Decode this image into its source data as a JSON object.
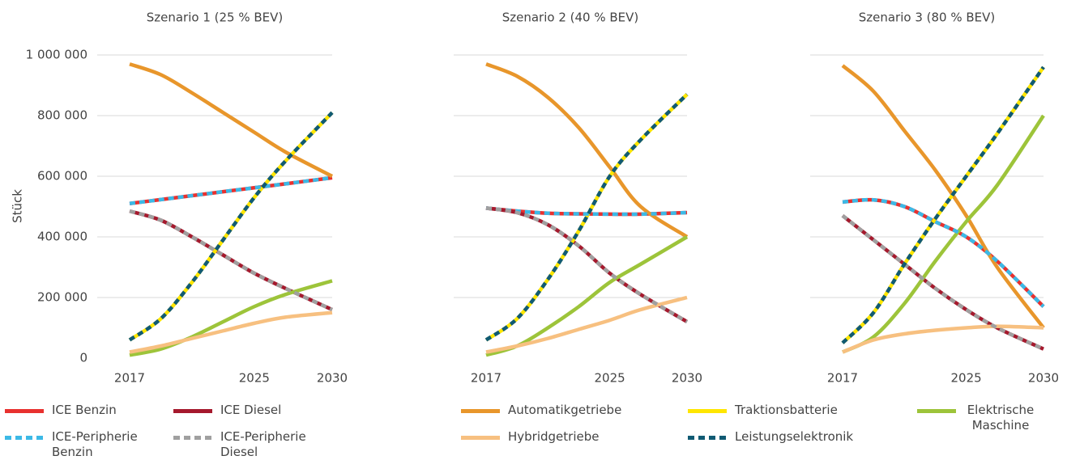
{
  "chart_data": [
    {
      "type": "line",
      "title": "Szenario 1 (25 % BEV)",
      "ylabel": "Stück",
      "x": [
        2017,
        2019,
        2021,
        2023,
        2025,
        2027,
        2030
      ],
      "xlim": [
        2017,
        2030
      ],
      "xticks": [
        2017,
        2025,
        2030
      ],
      "ylim": [
        0,
        1000000
      ],
      "yticks": [
        0,
        {
          "value": 200000,
          "label": "200 000"
        },
        {
          "value": 400000,
          "label": "400 000"
        },
        {
          "value": 600000,
          "label": "600 000"
        },
        {
          "value": 800000,
          "label": "800 000"
        },
        {
          "value": 1000000,
          "label": "1 000 000"
        }
      ],
      "grid": true,
      "series": [
        {
          "name": "ICE Benzin",
          "color": "#e8312f",
          "values": [
            510000,
            523000,
            536000,
            549000,
            562000,
            575000,
            595000
          ]
        },
        {
          "name": "ICE Diesel",
          "color": "#a5192d",
          "values": [
            485000,
            455000,
            400000,
            340000,
            280000,
            230000,
            160000
          ]
        },
        {
          "name": "Automatikgetriebe",
          "color": "#e8962b",
          "values": [
            970000,
            935000,
            875000,
            810000,
            745000,
            680000,
            600000
          ]
        },
        {
          "name": "Traktionsbatterie",
          "color": "#ffe600",
          "values": [
            60000,
            130000,
            250000,
            390000,
            530000,
            650000,
            810000
          ]
        },
        {
          "name": "Elektrische Maschine",
          "color": "#9dc43a",
          "values": [
            10000,
            30000,
            70000,
            120000,
            170000,
            210000,
            255000
          ]
        },
        {
          "name": "ICE-Peripherie Benzin",
          "color": "#3cb9e6",
          "dashed": true,
          "values": [
            510000,
            523000,
            536000,
            549000,
            562000,
            575000,
            595000
          ]
        },
        {
          "name": "ICE-Peripherie Diesel",
          "color": "#a0a0a0",
          "dashed": true,
          "values": [
            485000,
            455000,
            400000,
            340000,
            280000,
            230000,
            160000
          ]
        },
        {
          "name": "Hybridgetriebe",
          "color": "#f7c080",
          "values": [
            20000,
            40000,
            65000,
            90000,
            115000,
            135000,
            150000
          ]
        },
        {
          "name": "Leistungselektronik",
          "color": "#105a73",
          "dashed": true,
          "values": [
            60000,
            130000,
            250000,
            390000,
            530000,
            650000,
            810000
          ]
        }
      ]
    },
    {
      "type": "line",
      "title": "Szenario 2 (40 % BEV)",
      "x": [
        2017,
        2019,
        2021,
        2023,
        2025,
        2027,
        2030
      ],
      "xlim": [
        2017,
        2030
      ],
      "xticks": [
        2017,
        2025,
        2030
      ],
      "ylim": [
        0,
        1000000
      ],
      "grid": true,
      "series": [
        {
          "color": "#e8312f",
          "values": [
            495000,
            485000,
            478000,
            476000,
            475000,
            475000,
            480000
          ]
        },
        {
          "color": "#a5192d",
          "values": [
            495000,
            480000,
            440000,
            370000,
            280000,
            210000,
            120000
          ]
        },
        {
          "color": "#e8962b",
          "values": [
            970000,
            930000,
            860000,
            760000,
            630000,
            500000,
            400000
          ]
        },
        {
          "color": "#ffe600",
          "values": [
            60000,
            130000,
            260000,
            420000,
            600000,
            720000,
            870000
          ]
        },
        {
          "color": "#9dc43a",
          "values": [
            10000,
            40000,
            100000,
            170000,
            250000,
            310000,
            400000
          ]
        },
        {
          "color": "#3cb9e6",
          "dashed": true,
          "values": [
            495000,
            485000,
            478000,
            476000,
            475000,
            475000,
            480000
          ]
        },
        {
          "color": "#a0a0a0",
          "dashed": true,
          "values": [
            495000,
            480000,
            440000,
            370000,
            280000,
            210000,
            120000
          ]
        },
        {
          "color": "#f7c080",
          "values": [
            20000,
            40000,
            65000,
            95000,
            125000,
            160000,
            200000
          ]
        },
        {
          "color": "#105a73",
          "dashed": true,
          "values": [
            60000,
            130000,
            260000,
            420000,
            600000,
            720000,
            870000
          ]
        }
      ]
    },
    {
      "type": "line",
      "title": "Szenario 3 (80 % BEV)",
      "x": [
        2017,
        2019,
        2021,
        2023,
        2025,
        2027,
        2030
      ],
      "xlim": [
        2017,
        2030
      ],
      "xticks": [
        2017,
        2025,
        2030
      ],
      "ylim": [
        0,
        1000000
      ],
      "grid": true,
      "series": [
        {
          "color": "#e8312f",
          "values": [
            515000,
            522000,
            500000,
            450000,
            400000,
            320000,
            170000
          ]
        },
        {
          "color": "#a5192d",
          "values": [
            470000,
            390000,
            310000,
            230000,
            160000,
            100000,
            30000
          ]
        },
        {
          "color": "#e8962b",
          "values": [
            965000,
            880000,
            750000,
            620000,
            470000,
            300000,
            100000
          ]
        },
        {
          "color": "#ffe600",
          "values": [
            50000,
            150000,
            310000,
            460000,
            600000,
            740000,
            960000
          ]
        },
        {
          "color": "#9dc43a",
          "values": [
            20000,
            70000,
            180000,
            320000,
            450000,
            570000,
            800000
          ]
        },
        {
          "color": "#3cb9e6",
          "dashed": true,
          "values": [
            515000,
            522000,
            500000,
            450000,
            400000,
            320000,
            170000
          ]
        },
        {
          "color": "#a0a0a0",
          "dashed": true,
          "values": [
            470000,
            390000,
            310000,
            230000,
            160000,
            100000,
            30000
          ]
        },
        {
          "color": "#f7c080",
          "values": [
            20000,
            60000,
            80000,
            92000,
            100000,
            105000,
            100000
          ]
        },
        {
          "color": "#105a73",
          "dashed": true,
          "values": [
            50000,
            150000,
            310000,
            460000,
            600000,
            740000,
            960000
          ]
        }
      ]
    }
  ]
}
